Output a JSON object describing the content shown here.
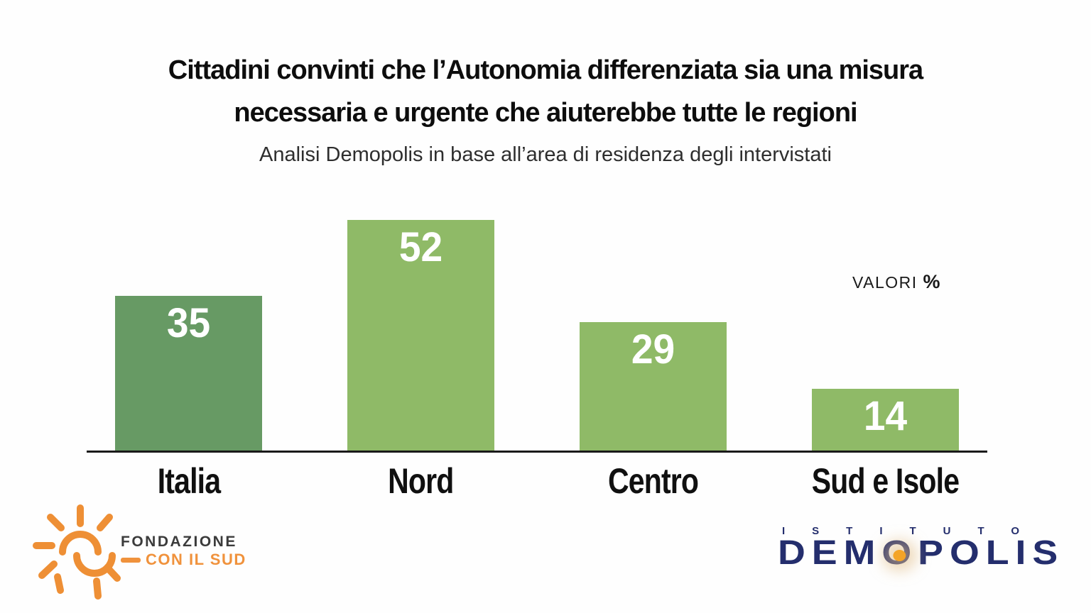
{
  "header": {
    "title_line1": "Cittadini convinti che l’Autonomia differenziata sia una misura",
    "title_line2": "necessaria e urgente che aiuterebbe tutte le regioni",
    "subtitle": "Analisi Demopolis in base all’area di residenza degli intervistati"
  },
  "chart_data": {
    "type": "bar",
    "title": "Cittadini convinti che l’Autonomia differenziata sia una misura necessaria e urgente che aiuterebbe tutte le regioni",
    "subtitle": "Analisi Demopolis in base all’area di residenza degli intervistati",
    "categories": [
      "Italia",
      "Nord",
      "Centro",
      "Sud e Isole"
    ],
    "values": [
      35,
      52,
      29,
      14
    ],
    "unit_note": "VALORI %",
    "xlabel": "",
    "ylabel": "",
    "ylim": [
      0,
      55
    ],
    "grid": false,
    "legend": "none",
    "value_label_position": "inside-top",
    "value_label_color": "#ffffff",
    "bar_colors": [
      "#679a64",
      "#8fba67",
      "#8fba67",
      "#8fba67"
    ],
    "axis_line_color": "#1a1a1a"
  },
  "annotations": {
    "valori_text": "VALORI",
    "percent_symbol": "%"
  },
  "footer": {
    "fondazione": {
      "line1": "FONDAZIONE",
      "line2": "CON IL SUD",
      "sun_color": "#ee8f35",
      "line1_color": "#3b3b3b",
      "line2_color": "#f0923c"
    },
    "demopolis": {
      "istituto": "ISTITUTO",
      "name_pre": "DEM",
      "name_o": "O",
      "name_post": "POLIS",
      "navy_color": "#242e6d",
      "dot_color": "#f4a427"
    }
  }
}
